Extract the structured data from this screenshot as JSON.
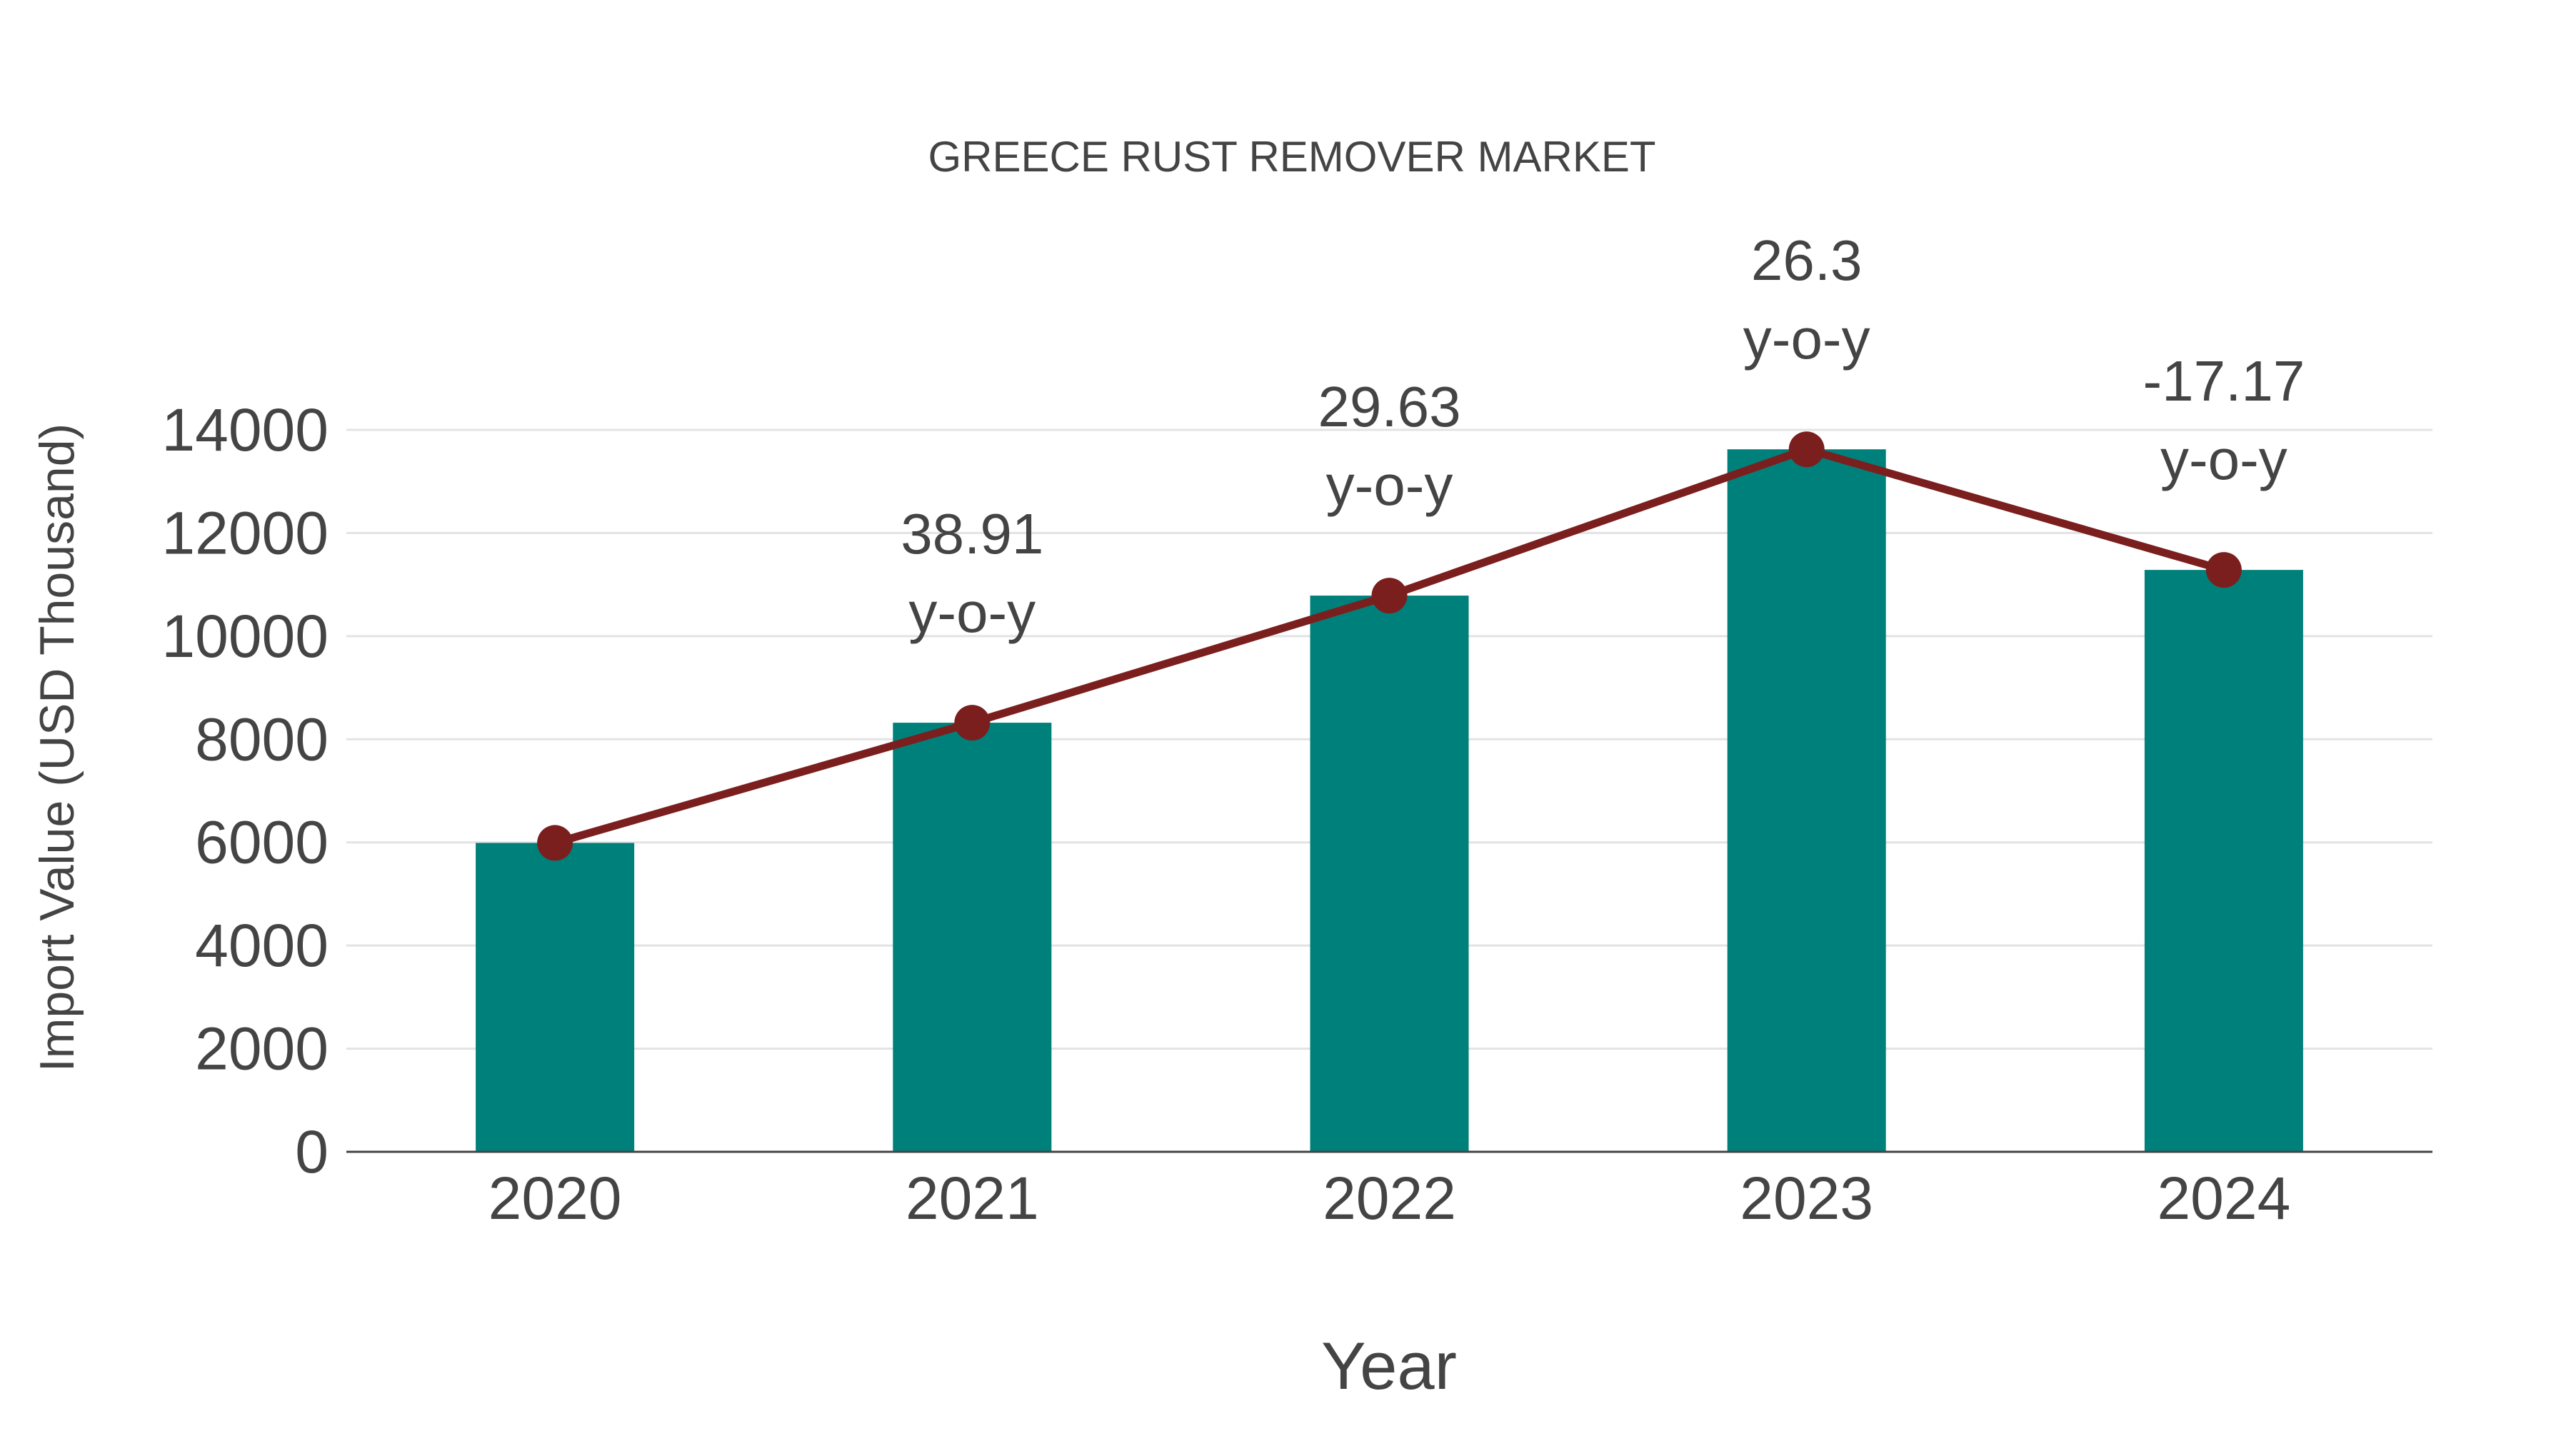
{
  "chart_data": {
    "type": "bar",
    "title": "GREECE RUST REMOVER MARKET",
    "xlabel": "Year",
    "ylabel": "Import Value (USD Thousand)",
    "categories": [
      "2020",
      "2021",
      "2022",
      "2023",
      "2024"
    ],
    "ylim": [
      0,
      14000
    ],
    "yticks": [
      0,
      2000,
      4000,
      6000,
      8000,
      10000,
      12000,
      14000
    ],
    "grid": true,
    "series": [
      {
        "name": "Import Value (bar)",
        "type": "bar",
        "color": "#00807A",
        "values": [
          5990,
          8321,
          10786,
          13623,
          11284
        ]
      },
      {
        "name": "Import Value (line)",
        "type": "line",
        "color": "#7B1E1E",
        "values": [
          5990,
          8321,
          10786,
          13623,
          11284
        ]
      }
    ],
    "annotations": [
      {
        "category": "2021",
        "value": "38.91",
        "suffix": "y-o-y"
      },
      {
        "category": "2022",
        "value": "29.63",
        "suffix": "y-o-y"
      },
      {
        "category": "2023",
        "value": "26.3",
        "suffix": "y-o-y"
      },
      {
        "category": "2024",
        "value": "-17.17",
        "suffix": "y-o-y"
      }
    ]
  }
}
